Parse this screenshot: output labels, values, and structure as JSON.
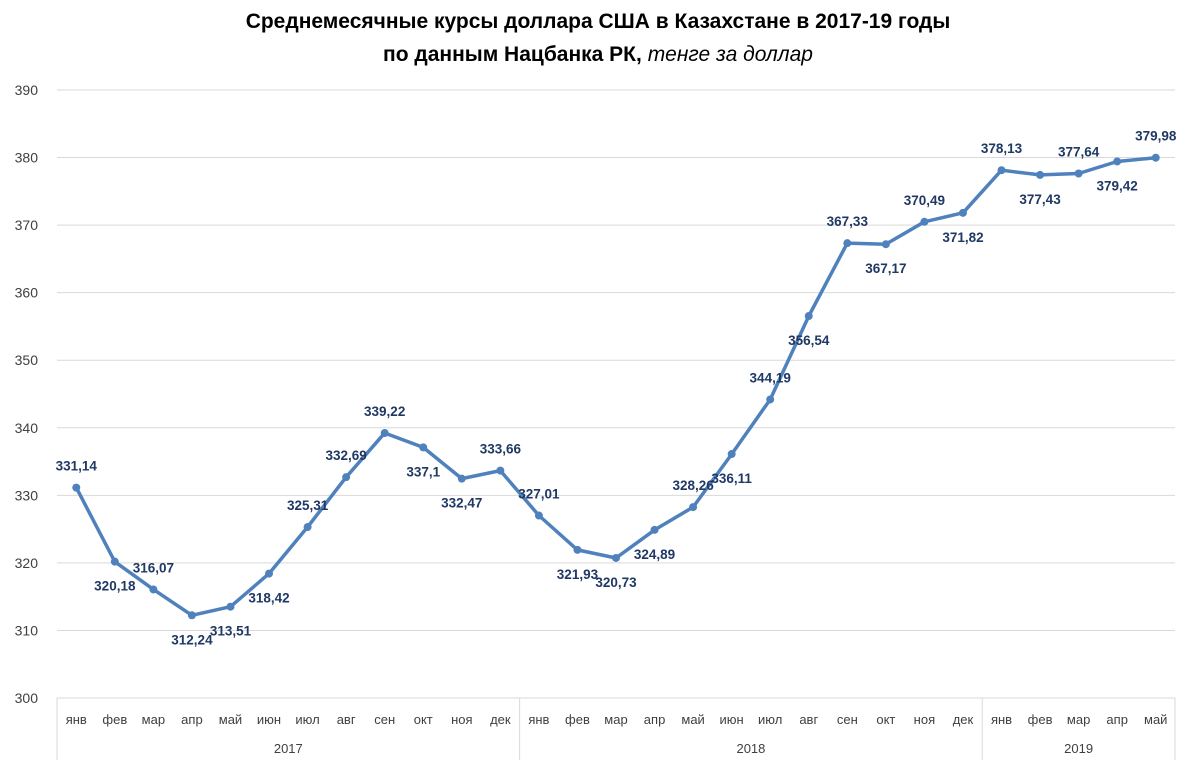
{
  "chart_data": {
    "type": "line",
    "title_line1": "Среднемесячные курсы доллара США в Казахстане в 2017-19 годы",
    "title_line2": "по данным Нацбанка РК,",
    "title_unit": "тенге за доллар",
    "ylim": [
      300,
      390
    ],
    "yticks": [
      "300",
      "310",
      "320",
      "330",
      "340",
      "350",
      "360",
      "370",
      "380",
      "390"
    ],
    "months": [
      "янв",
      "фев",
      "мар",
      "апр",
      "май",
      "июн",
      "июл",
      "авг",
      "сен",
      "окт",
      "ноя",
      "дек",
      "янв",
      "фев",
      "мар",
      "апр",
      "май",
      "июн",
      "июл",
      "авг",
      "сен",
      "окт",
      "ноя",
      "дек",
      "янв",
      "фев",
      "мар",
      "апр",
      "май"
    ],
    "years": [
      {
        "label": "2017",
        "count": 12
      },
      {
        "label": "2018",
        "count": 12
      },
      {
        "label": "2019",
        "count": 5
      }
    ],
    "values": [
      331.14,
      320.18,
      316.07,
      312.24,
      313.51,
      318.42,
      325.31,
      332.69,
      339.22,
      337.1,
      332.47,
      333.66,
      327.01,
      321.93,
      320.73,
      324.89,
      328.26,
      336.11,
      344.19,
      356.54,
      367.33,
      367.17,
      370.49,
      371.82,
      378.13,
      377.43,
      377.64,
      379.42,
      379.98
    ],
    "value_labels": [
      "331,14",
      "320,18",
      "316,07",
      "312,24",
      "313,51",
      "318,42",
      "325,31",
      "332,69",
      "339,22",
      "337,1",
      "332,47",
      "333,66",
      "327,01",
      "321,93",
      "320,73",
      "324,89",
      "328,26",
      "336,11",
      "344,19",
      "356,54",
      "367,33",
      "367,17",
      "370,49",
      "371,82",
      "378,13",
      "377,43",
      "377,64",
      "379,42",
      "379,98"
    ],
    "label_positions": [
      "above",
      "below",
      "above",
      "below",
      "below",
      "below",
      "above",
      "above",
      "above",
      "below",
      "below",
      "above",
      "above",
      "below",
      "below",
      "below",
      "above",
      "below",
      "above",
      "below",
      "above",
      "below",
      "above",
      "below",
      "above",
      "below",
      "above",
      "below",
      "above"
    ],
    "colors": {
      "line": "#4f81bd",
      "label": "#1f3864",
      "grid": "#d9d9d9",
      "axis_text": "#404040"
    }
  }
}
